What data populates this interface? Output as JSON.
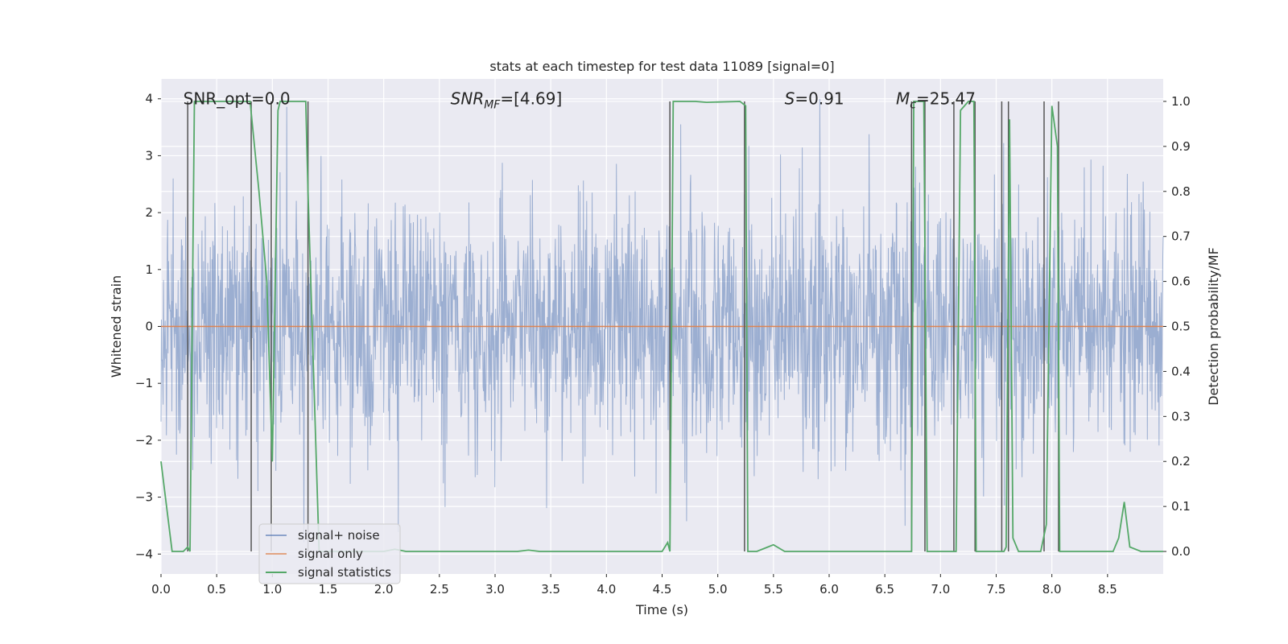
{
  "chart_data": {
    "type": "line",
    "title": "stats at each timestep for test data 11089 [signal=0]",
    "xlabel": "Time (s)",
    "ylabel": "Whitened strain",
    "ylabel_right": "Detection probability/MF",
    "xlim": [
      0.0,
      9.0
    ],
    "ylim": [
      -4.35,
      4.35
    ],
    "ylim_right": [
      -0.05,
      1.05
    ],
    "x_ticks": [
      "0.0",
      "0.5",
      "1.0",
      "1.5",
      "2.0",
      "2.5",
      "3.0",
      "3.5",
      "4.0",
      "4.5",
      "5.0",
      "5.5",
      "6.0",
      "6.5",
      "7.0",
      "7.5",
      "8.0",
      "8.5"
    ],
    "x_tick_values": [
      0.0,
      0.5,
      1.0,
      1.5,
      2.0,
      2.5,
      3.0,
      3.5,
      4.0,
      4.5,
      5.0,
      5.5,
      6.0,
      6.5,
      7.0,
      7.5,
      8.0,
      8.5
    ],
    "y_ticks": [
      "−4",
      "−3",
      "−2",
      "−1",
      "0",
      "1",
      "2",
      "3",
      "4"
    ],
    "y_tick_values": [
      -4,
      -3,
      -2,
      -1,
      0,
      1,
      2,
      3,
      4
    ],
    "y_ticks_right": [
      "0.0",
      "0.1",
      "0.2",
      "0.3",
      "0.4",
      "0.5",
      "0.6",
      "0.7",
      "0.8",
      "0.9",
      "1.0"
    ],
    "y_tick_values_right": [
      0.0,
      0.1,
      0.2,
      0.3,
      0.4,
      0.5,
      0.6,
      0.7,
      0.8,
      0.9,
      1.0
    ],
    "grid": true,
    "legend_placement": "lower-left",
    "annotations": [
      {
        "id": "snr-opt",
        "label": "SNR_opt=0.0",
        "x": 0.2,
        "y": 4.0
      },
      {
        "id": "snr-mf",
        "label": "SNR_MF=[4.69]",
        "x": 2.6,
        "y": 4.0
      },
      {
        "id": "s-value",
        "label": "S=0.91",
        "x": 5.6,
        "y": 4.0
      },
      {
        "id": "mc-value",
        "label": "M_c=25.47",
        "x": 6.6,
        "y": 4.0
      }
    ],
    "series": [
      {
        "name": "signal+ noise",
        "color": "#4c72b0",
        "style": "dense noise trace, alpha ~0.5",
        "typical_range": [
          -2.0,
          2.0
        ],
        "extremes": [
          -4.0,
          4.0
        ]
      },
      {
        "name": "signal only",
        "color": "#dd8452",
        "x": [
          0.0,
          9.0
        ],
        "y": [
          0.0,
          0.0
        ]
      },
      {
        "name": "signal statistics",
        "color": "#55a868",
        "axis": "right",
        "x": [
          0.0,
          0.05,
          0.1,
          0.2,
          0.24,
          0.26,
          0.3,
          0.5,
          0.7,
          0.8,
          0.82,
          0.88,
          0.95,
          1.0,
          1.05,
          1.07,
          1.1,
          1.3,
          1.32,
          1.37,
          1.42,
          1.5,
          2.0,
          2.1,
          2.2,
          2.3,
          3.2,
          3.3,
          3.4,
          4.5,
          4.55,
          4.57,
          4.6,
          4.8,
          4.9,
          5.2,
          5.25,
          5.27,
          5.3,
          5.35,
          5.45,
          5.5,
          5.6,
          6.0,
          6.5,
          6.74,
          6.76,
          6.8,
          6.85,
          6.88,
          6.93,
          7.1,
          7.14,
          7.18,
          7.25,
          7.3,
          7.32,
          7.35,
          7.5,
          7.57,
          7.59,
          7.62,
          7.65,
          7.7,
          7.8,
          7.9,
          7.95,
          8.0,
          8.05,
          8.07,
          8.1,
          8.2,
          8.3,
          8.5,
          8.55,
          8.6,
          8.65,
          8.7,
          8.8,
          9.0
        ],
        "y": [
          0.2,
          0.1,
          0.0,
          0.0,
          0.01,
          0.0,
          1.0,
          1.0,
          1.0,
          1.0,
          0.95,
          0.8,
          0.6,
          0.2,
          0.98,
          1.0,
          1.0,
          1.0,
          0.8,
          0.4,
          0.0,
          0.0,
          0.0,
          0.005,
          0.0,
          0.0,
          0.0,
          0.003,
          0.0,
          0.0,
          0.02,
          0.0,
          1.0,
          1.0,
          0.998,
          1.0,
          0.99,
          0.0,
          0.0,
          0.0,
          0.01,
          0.015,
          0.0,
          0.0,
          0.0,
          0.0,
          1.0,
          1.0,
          1.0,
          0.0,
          0.0,
          0.0,
          0.0,
          0.98,
          1.0,
          1.0,
          0.0,
          0.0,
          0.0,
          0.0,
          0.01,
          0.96,
          0.03,
          0.0,
          0.0,
          0.0,
          0.06,
          0.99,
          0.9,
          0.0,
          0.0,
          0.0,
          0.0,
          0.0,
          0.0,
          0.03,
          0.11,
          0.01,
          0.0,
          0.0
        ]
      }
    ],
    "vertical_lines_x": [
      0.24,
      0.81,
      0.99,
      1.32,
      4.57,
      5.24,
      6.74,
      6.86,
      7.12,
      7.31,
      7.55,
      7.61,
      7.93,
      8.06
    ]
  }
}
